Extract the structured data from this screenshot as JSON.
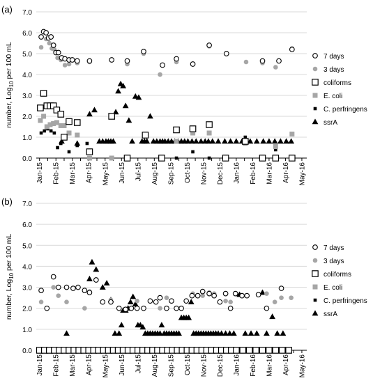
{
  "chart_data": [
    {
      "type": "scatter",
      "panel_label": "(a)",
      "ylabel": "number, Log",
      "ylabel_subscript": "10",
      "ylabel_suffix": " per 100 mL",
      "ylim": [
        0,
        7
      ],
      "ytick_labels": [
        "0.0",
        "1.0",
        "2.0",
        "3.0",
        "4.0",
        "5.0",
        "6.0",
        "7.0"
      ],
      "xtick_labels": [
        "Jan-15",
        "Feb-15",
        "Mar-15",
        "Apr-15",
        "May-15",
        "Jun-15",
        "Jul-15",
        "Aug-15",
        "Sep-15",
        "Oct-15",
        "Nov-15",
        "Dec-15",
        "Jan-16",
        "Feb-16",
        "Mar-16",
        "Apr-16",
        "May-16"
      ],
      "grid": true,
      "legend_position": "right",
      "series": [
        {
          "name": "7 days",
          "marker": "open-circle",
          "x": [
            0.1,
            0.25,
            0.4,
            0.55,
            0.7,
            0.85,
            1.0,
            1.15,
            1.35,
            1.55,
            1.8,
            2.0,
            2.3,
            3.05,
            4.4,
            5.35,
            6.35,
            7.5,
            8.35,
            9.35,
            10.35,
            11.4,
            13.6,
            14.6,
            15.4
          ],
          "y": [
            5.8,
            6.05,
            6.0,
            5.75,
            5.8,
            5.4,
            5.05,
            5.05,
            4.8,
            4.75,
            4.7,
            4.7,
            4.65,
            4.65,
            4.7,
            4.65,
            5.1,
            4.45,
            4.75,
            4.5,
            5.4,
            5.0,
            4.65,
            4.65,
            5.2
          ]
        },
        {
          "name": "3 days",
          "marker": "filled-circle-gray",
          "x": [
            0.1,
            0.4,
            0.6,
            0.75,
            0.9,
            1.1,
            1.3,
            1.55,
            1.8,
            2.3,
            3.05,
            4.4,
            5.35,
            6.35,
            7.35,
            8.35,
            9.35,
            10.35,
            11.4,
            12.6,
            13.6,
            14.4,
            15.4
          ],
          "y": [
            5.3,
            5.7,
            5.5,
            5.25,
            5.2,
            4.8,
            4.7,
            4.45,
            4.5,
            4.55,
            4.6,
            4.7,
            4.5,
            5.0,
            4.0,
            4.6,
            4.5,
            5.35,
            5.0,
            4.6,
            4.55,
            4.35,
            5.25
          ]
        },
        {
          "name": "coliforms",
          "marker": "open-square",
          "x": [
            0.05,
            0.25,
            0.45,
            0.65,
            0.85,
            1.05,
            1.3,
            1.5,
            1.8,
            2.3,
            3.05,
            4.4,
            5.35,
            6.45,
            7.45,
            8.35,
            9.35,
            10.35,
            11.35,
            12.55,
            13.6,
            14.4,
            15.4
          ],
          "y": [
            2.4,
            3.1,
            2.5,
            2.5,
            2.5,
            2.3,
            2.1,
            1.0,
            1.75,
            1.7,
            0.3,
            2.0,
            0.0,
            1.1,
            0.0,
            1.35,
            1.4,
            1.6,
            0.0,
            0.8,
            0.0,
            0.0,
            0.0
          ]
        },
        {
          "name": "E. coli",
          "marker": "filled-square-gray",
          "x": [
            0.05,
            0.25,
            0.45,
            0.65,
            0.85,
            1.05,
            1.3,
            1.5,
            1.8,
            2.3,
            3.05,
            4.4,
            5.35,
            6.45,
            7.45,
            8.35,
            9.35,
            10.35,
            12.55,
            13.6,
            14.4,
            15.4
          ],
          "y": [
            1.8,
            2.0,
            1.5,
            1.6,
            1.65,
            1.7,
            1.55,
            1.55,
            1.2,
            1.1,
            0.0,
            0.0,
            0.0,
            1.1,
            0.0,
            0.8,
            1.2,
            1.2,
            0.7,
            0.0,
            0.55,
            1.15
          ]
        },
        {
          "name": "C. perfringens",
          "marker": "filled-square-black",
          "x": [
            0.1,
            0.3,
            0.5,
            0.7,
            0.9,
            1.1,
            1.3,
            1.5,
            1.8,
            2.3,
            2.9,
            4.4,
            6.45,
            7.45,
            8.35,
            9.35,
            10.35,
            12.55,
            13.6,
            14.4,
            15.4
          ],
          "y": [
            1.2,
            1.3,
            1.4,
            1.3,
            1.2,
            0.5,
            0.7,
            1.0,
            0.3,
            0.6,
            0.7,
            0.0,
            1.1,
            0.0,
            0.0,
            0.3,
            0.0,
            1.0,
            0.0,
            0.4,
            0.0
          ]
        },
        {
          "name": "ssrA",
          "marker": "filled-triangle",
          "x": [
            1.35,
            2.3,
            3.05,
            3.35,
            3.65,
            3.85,
            4.05,
            4.2,
            4.35,
            4.5,
            4.65,
            4.8,
            4.95,
            5.1,
            5.25,
            5.45,
            5.65,
            5.85,
            6.05,
            6.25,
            6.4,
            6.55,
            6.75,
            6.95,
            7.15,
            7.35,
            7.5,
            7.65,
            7.85,
            8.05,
            8.25,
            8.45,
            8.65,
            8.85,
            9.05,
            9.3,
            9.55,
            9.85,
            10.1,
            10.3,
            10.55,
            10.9,
            11.3,
            11.65,
            12.0,
            12.35,
            12.85,
            13.25,
            13.65,
            14.0,
            14.35,
            14.7,
            15.05,
            15.35
          ],
          "y": [
            0.8,
            0.7,
            2.1,
            2.3,
            0.8,
            0.8,
            0.8,
            0.8,
            0.8,
            0.8,
            2.2,
            3.2,
            3.55,
            3.45,
            2.5,
            1.8,
            0.8,
            2.95,
            2.9,
            0.8,
            0.8,
            0.8,
            2.0,
            0.8,
            0.8,
            0.8,
            0.8,
            0.8,
            0.8,
            0.8,
            0.8,
            0.8,
            0.8,
            0.8,
            0.8,
            0.8,
            0.8,
            0.8,
            0.8,
            0.8,
            0.8,
            0.8,
            0.8,
            0.8,
            0.8,
            0.8,
            0.8,
            0.8,
            0.8,
            0.8,
            0.8,
            0.8,
            0.8,
            0.8
          ]
        }
      ]
    },
    {
      "type": "scatter",
      "panel_label": "(b)",
      "ylabel": "number, Log",
      "ylabel_subscript": "10",
      "ylabel_suffix": " per 100 mL",
      "ylim": [
        0,
        7
      ],
      "ytick_labels": [
        "0.0",
        "1.0",
        "2.0",
        "3.0",
        "4.0",
        "5.0",
        "6.0",
        "7.0"
      ],
      "xtick_labels": [
        "Jan-15",
        "Feb-15",
        "Mar-15",
        "Apr-15",
        "May-15",
        "Jun-15",
        "Jul-15",
        "Aug-15",
        "Sep-15",
        "Oct-15",
        "Nov-15",
        "Dec-15",
        "Jan-16",
        "Feb-16",
        "Mar-16",
        "Apr-16",
        "May-16"
      ],
      "grid": true,
      "legend_position": "right",
      "series": [
        {
          "name": "7 days",
          "marker": "open-circle",
          "x": [
            0.1,
            0.45,
            0.85,
            1.15,
            1.65,
            2.05,
            2.35,
            2.75,
            3.05,
            3.45,
            3.85,
            4.35,
            4.85,
            5.25,
            5.6,
            5.95,
            6.35,
            6.75,
            7.1,
            7.35,
            7.75,
            8.05,
            8.35,
            8.65,
            8.95,
            9.3,
            9.65,
            9.95,
            10.35,
            10.65,
            11.0,
            11.35,
            11.65,
            11.95,
            12.35,
            12.65,
            13.35,
            13.85,
            14.75
          ],
          "y": [
            2.85,
            2.0,
            3.5,
            3.0,
            3.0,
            2.95,
            3.0,
            2.85,
            2.75,
            3.35,
            2.3,
            2.3,
            2.0,
            1.95,
            2.0,
            2.0,
            2.0,
            2.35,
            2.3,
            2.5,
            2.0,
            2.35,
            2.0,
            2.0,
            2.35,
            2.6,
            2.6,
            2.8,
            2.7,
            2.6,
            2.3,
            2.7,
            2.0,
            2.7,
            2.6,
            2.6,
            2.65,
            2.0,
            2.95
          ]
        },
        {
          "name": "3 days",
          "marker": "filled-circle-gray",
          "x": [
            0.1,
            0.85,
            1.15,
            1.65,
            2.35,
            2.75,
            3.05,
            4.35,
            4.85,
            5.95,
            7.35,
            7.75,
            8.35,
            8.65,
            9.35,
            9.95,
            10.35,
            10.65,
            11.35,
            11.65,
            12.65,
            13.85,
            14.35,
            14.75,
            15.35
          ],
          "y": [
            2.3,
            3.0,
            2.6,
            2.3,
            3.0,
            2.0,
            2.8,
            2.4,
            2.0,
            2.35,
            2.0,
            2.5,
            2.0,
            2.0,
            2.7,
            2.6,
            2.75,
            2.7,
            2.35,
            2.3,
            2.6,
            2.7,
            2.3,
            2.5,
            2.5
          ]
        },
        {
          "name": "coliforms",
          "marker": "open-square",
          "x": [
            0.0,
            0.3,
            0.6,
            0.9,
            1.2,
            1.5,
            1.8,
            2.1,
            2.4,
            2.7,
            3.0,
            3.3,
            3.6,
            3.9,
            4.2,
            4.5,
            4.8,
            5.1,
            5.4,
            5.7,
            6.0,
            6.3,
            6.6,
            6.9,
            7.2,
            7.5,
            7.8,
            8.1,
            8.4,
            8.7,
            9.0,
            9.3,
            9.6,
            9.9,
            10.2,
            10.5,
            10.8,
            11.1,
            11.4,
            11.7,
            12.0,
            12.4,
            12.8,
            13.2,
            13.6,
            14.0,
            14.4,
            14.8,
            15.2
          ],
          "y": [
            0,
            0,
            0,
            0,
            0,
            0,
            0,
            0,
            0,
            0,
            0,
            0,
            0,
            0,
            0,
            0,
            0,
            0,
            0,
            0,
            0,
            0,
            0,
            0,
            0,
            0,
            0,
            0,
            0,
            0,
            0,
            0,
            0,
            0,
            0,
            0,
            0,
            0,
            0,
            0,
            0,
            0,
            0,
            0,
            0,
            0,
            0,
            0,
            0
          ]
        },
        {
          "name": "E. coli",
          "marker": "filled-square-gray",
          "x": [
            0.0,
            0.3,
            0.6,
            0.9,
            1.2,
            1.5,
            1.8,
            2.1,
            2.4,
            2.7,
            3.0,
            3.3,
            3.6,
            3.9,
            4.2,
            4.5,
            4.8,
            5.1,
            5.4,
            5.7,
            6.0,
            6.3,
            6.6,
            6.9,
            7.2,
            7.5,
            7.8,
            8.1,
            8.4,
            8.7,
            9.0,
            9.3,
            9.6,
            9.9,
            10.2,
            10.5,
            10.8,
            11.1,
            11.4,
            11.7,
            12.0,
            12.4,
            12.8,
            13.2,
            13.6,
            14.0,
            14.4,
            14.8,
            15.2
          ],
          "y": [
            0,
            0,
            0,
            0,
            0,
            0,
            0,
            0,
            0,
            0,
            0,
            0,
            0,
            0,
            0,
            0,
            0,
            0,
            0,
            0,
            0,
            0,
            0,
            0,
            0,
            0,
            0,
            0,
            0,
            0,
            0,
            0,
            0,
            0,
            0,
            0,
            0,
            0,
            0,
            0,
            0,
            0,
            0,
            0,
            0,
            0,
            0,
            0,
            0
          ]
        },
        {
          "name": "C. perfringens",
          "marker": "filled-square-black",
          "x": [
            0.0,
            0.3,
            0.6,
            0.9,
            1.2,
            1.5,
            1.8,
            2.1,
            2.4,
            2.7,
            3.0,
            3.3,
            3.6,
            3.9,
            4.2,
            4.5,
            4.8,
            5.1,
            5.4,
            5.7,
            6.0,
            6.3,
            6.6,
            6.9,
            7.2,
            7.5,
            7.8,
            8.1,
            8.4,
            8.7,
            9.0,
            9.3,
            9.6,
            9.9,
            10.2,
            10.5,
            10.8,
            11.1,
            11.4,
            11.7,
            12.0,
            12.4,
            12.8,
            13.2,
            13.6,
            14.0,
            14.4,
            14.8,
            15.2
          ],
          "y": [
            0,
            0,
            0,
            0,
            0,
            0,
            0,
            0,
            0,
            0,
            0,
            0,
            0,
            0,
            0,
            0,
            0,
            0,
            0,
            0,
            0,
            0,
            0,
            0,
            0,
            0,
            0,
            0,
            0,
            0,
            0,
            0,
            0,
            0,
            0,
            0,
            0,
            0,
            0,
            0,
            0,
            0,
            0,
            0,
            0,
            0,
            0,
            0,
            0
          ]
        },
        {
          "name": "ssrA",
          "marker": "filled-triangle",
          "x": [
            1.65,
            3.05,
            3.2,
            3.45,
            3.85,
            4.1,
            4.35,
            4.6,
            4.85,
            5.0,
            5.1,
            5.25,
            5.4,
            5.55,
            5.7,
            5.85,
            6.0,
            6.15,
            6.3,
            6.45,
            6.6,
            6.75,
            6.9,
            7.05,
            7.2,
            7.35,
            7.45,
            7.6,
            7.75,
            7.9,
            8.05,
            8.2,
            8.35,
            8.5,
            8.65,
            8.8,
            8.95,
            9.1,
            9.25,
            9.4,
            9.55,
            9.7,
            9.85,
            10.0,
            10.15,
            10.3,
            10.45,
            10.6,
            10.75,
            10.9,
            11.1,
            11.35,
            11.6,
            11.85,
            12.2,
            12.55,
            12.9,
            13.25,
            13.6,
            13.85,
            14.2,
            14.5,
            14.85
          ],
          "y": [
            0.8,
            3.4,
            4.2,
            3.85,
            3.0,
            3.2,
            2.4,
            0.8,
            0.8,
            1.2,
            1.9,
            1.9,
            2.0,
            2.3,
            2.55,
            2.2,
            1.2,
            1.2,
            1.1,
            0.8,
            0.8,
            0.8,
            0.8,
            0.8,
            0.8,
            0.8,
            1.2,
            0.8,
            0.8,
            0.8,
            0.8,
            0.8,
            0.8,
            0.8,
            1.55,
            1.55,
            1.55,
            1.55,
            2.3,
            0.8,
            0.8,
            0.8,
            0.8,
            0.8,
            0.8,
            0.8,
            0.8,
            0.8,
            0.8,
            0.8,
            0.8,
            0.8,
            0.8,
            0.8,
            2.65,
            0.8,
            0.8,
            0.8,
            2.75,
            0.8,
            1.6,
            0.8,
            0.8
          ]
        }
      ]
    }
  ]
}
